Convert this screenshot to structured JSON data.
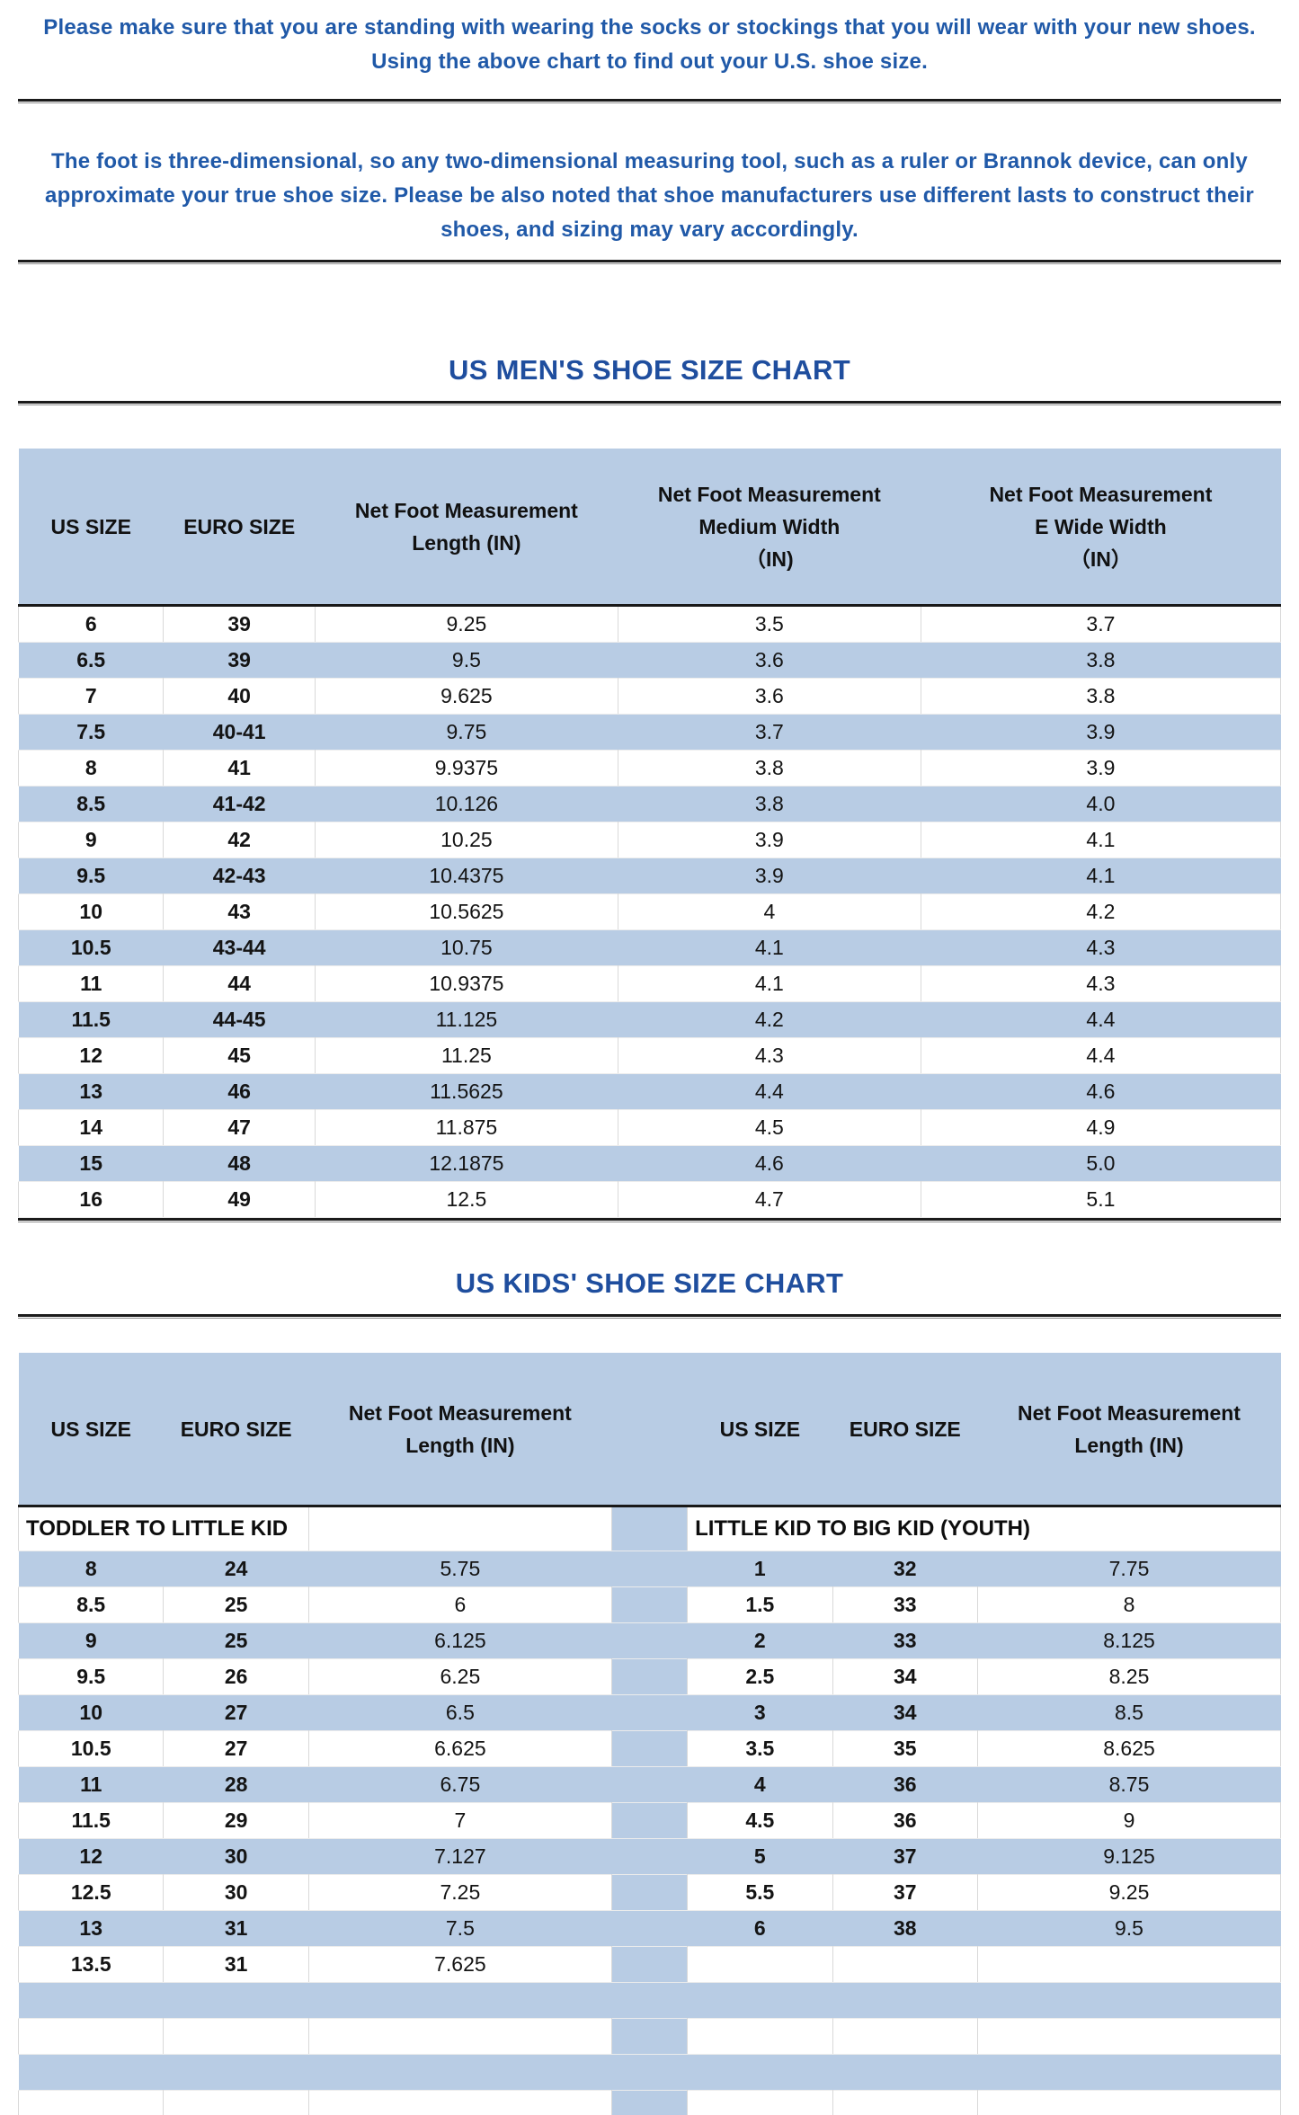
{
  "intro": {
    "para1_lines": [
      "Please make sure that you are standing with wearing the socks or stockings that you will wear with your new shoes.",
      "Using the above chart to find out your U.S. shoe size."
    ],
    "para2_lines": [
      "The foot is three-dimensional, so any two-dimensional measuring tool, such as a ruler or Brannok device, can only",
      "approximate your true shoe size. Please be also noted that shoe manufacturers use different lasts to construct their",
      "shoes, and sizing may vary accordingly."
    ]
  },
  "mens_chart": {
    "title": "US MEN'S SHOE SIZE CHART",
    "columns": [
      [
        "US SIZE"
      ],
      [
        "EURO SIZE"
      ],
      [
        "Net Foot Measurement",
        "Length (IN)"
      ],
      [
        "Net Foot Measurement",
        "Medium Width",
        "（IN)"
      ],
      [
        "Net Foot Measurement",
        "E Wide Width",
        "（IN）"
      ]
    ],
    "rows": [
      [
        "6",
        "39",
        "9.25",
        "3.5",
        "3.7"
      ],
      [
        "6.5",
        "39",
        "9.5",
        "3.6",
        "3.8"
      ],
      [
        "7",
        "40",
        "9.625",
        "3.6",
        "3.8"
      ],
      [
        "7.5",
        "40-41",
        "9.75",
        "3.7",
        "3.9"
      ],
      [
        "8",
        "41",
        "9.9375",
        "3.8",
        "3.9"
      ],
      [
        "8.5",
        "41-42",
        "10.126",
        "3.8",
        "4.0"
      ],
      [
        "9",
        "42",
        "10.25",
        "3.9",
        "4.1"
      ],
      [
        "9.5",
        "42-43",
        "10.4375",
        "3.9",
        "4.1"
      ],
      [
        "10",
        "43",
        "10.5625",
        "4",
        "4.2"
      ],
      [
        "10.5",
        "43-44",
        "10.75",
        "4.1",
        "4.3"
      ],
      [
        "11",
        "44",
        "10.9375",
        "4.1",
        "4.3"
      ],
      [
        "11.5",
        "44-45",
        "11.125",
        "4.2",
        "4.4"
      ],
      [
        "12",
        "45",
        "11.25",
        "4.3",
        "4.4"
      ],
      [
        "13",
        "46",
        "11.5625",
        "4.4",
        "4.6"
      ],
      [
        "14",
        "47",
        "11.875",
        "4.5",
        "4.9"
      ],
      [
        "15",
        "48",
        "12.1875",
        "4.6",
        "5.0"
      ],
      [
        "16",
        "49",
        "12.5",
        "4.7",
        "5.1"
      ]
    ]
  },
  "kids_chart": {
    "title": "US KIDS' SHOE SIZE CHART",
    "left_columns": [
      [
        "US SIZE"
      ],
      [
        "EURO SIZE"
      ],
      [
        "Net Foot Measurement",
        "Length (IN)"
      ]
    ],
    "right_columns": [
      [
        "US SIZE"
      ],
      [
        "EURO SIZE"
      ],
      [
        "Net Foot Measurement",
        "Length (IN)"
      ]
    ],
    "left_section_title": "TODDLER TO LITTLE KID",
    "right_section_title": "LITTLE KID TO BIG KID (YOUTH)",
    "left_rows": [
      [
        "8",
        "24",
        "5.75"
      ],
      [
        "8.5",
        "25",
        "6"
      ],
      [
        "9",
        "25",
        "6.125"
      ],
      [
        "9.5",
        "26",
        "6.25"
      ],
      [
        "10",
        "27",
        "6.5"
      ],
      [
        "10.5",
        "27",
        "6.625"
      ],
      [
        "11",
        "28",
        "6.75"
      ],
      [
        "11.5",
        "29",
        "7"
      ],
      [
        "12",
        "30",
        "7.127"
      ],
      [
        "12.5",
        "30",
        "7.25"
      ],
      [
        "13",
        "31",
        "7.5"
      ],
      [
        "13.5",
        "31",
        "7.625"
      ]
    ],
    "right_rows": [
      [
        "1",
        "32",
        "7.75"
      ],
      [
        "1.5",
        "33",
        "8"
      ],
      [
        "2",
        "33",
        "8.125"
      ],
      [
        "2.5",
        "34",
        "8.25"
      ],
      [
        "3",
        "34",
        "8.5"
      ],
      [
        "3.5",
        "35",
        "8.625"
      ],
      [
        "4",
        "36",
        "8.75"
      ],
      [
        "4.5",
        "36",
        "9"
      ],
      [
        "5",
        "37",
        "9.125"
      ],
      [
        "5.5",
        "37",
        "9.25"
      ],
      [
        "6",
        "38",
        "9.5"
      ]
    ],
    "total_body_rows": 16
  },
  "colors": {
    "accent_blue_fill": "#b8cce4",
    "title_blue": "#1f4e9e",
    "note_blue": "#2059a8",
    "separator_black": "#1b1b1b"
  }
}
